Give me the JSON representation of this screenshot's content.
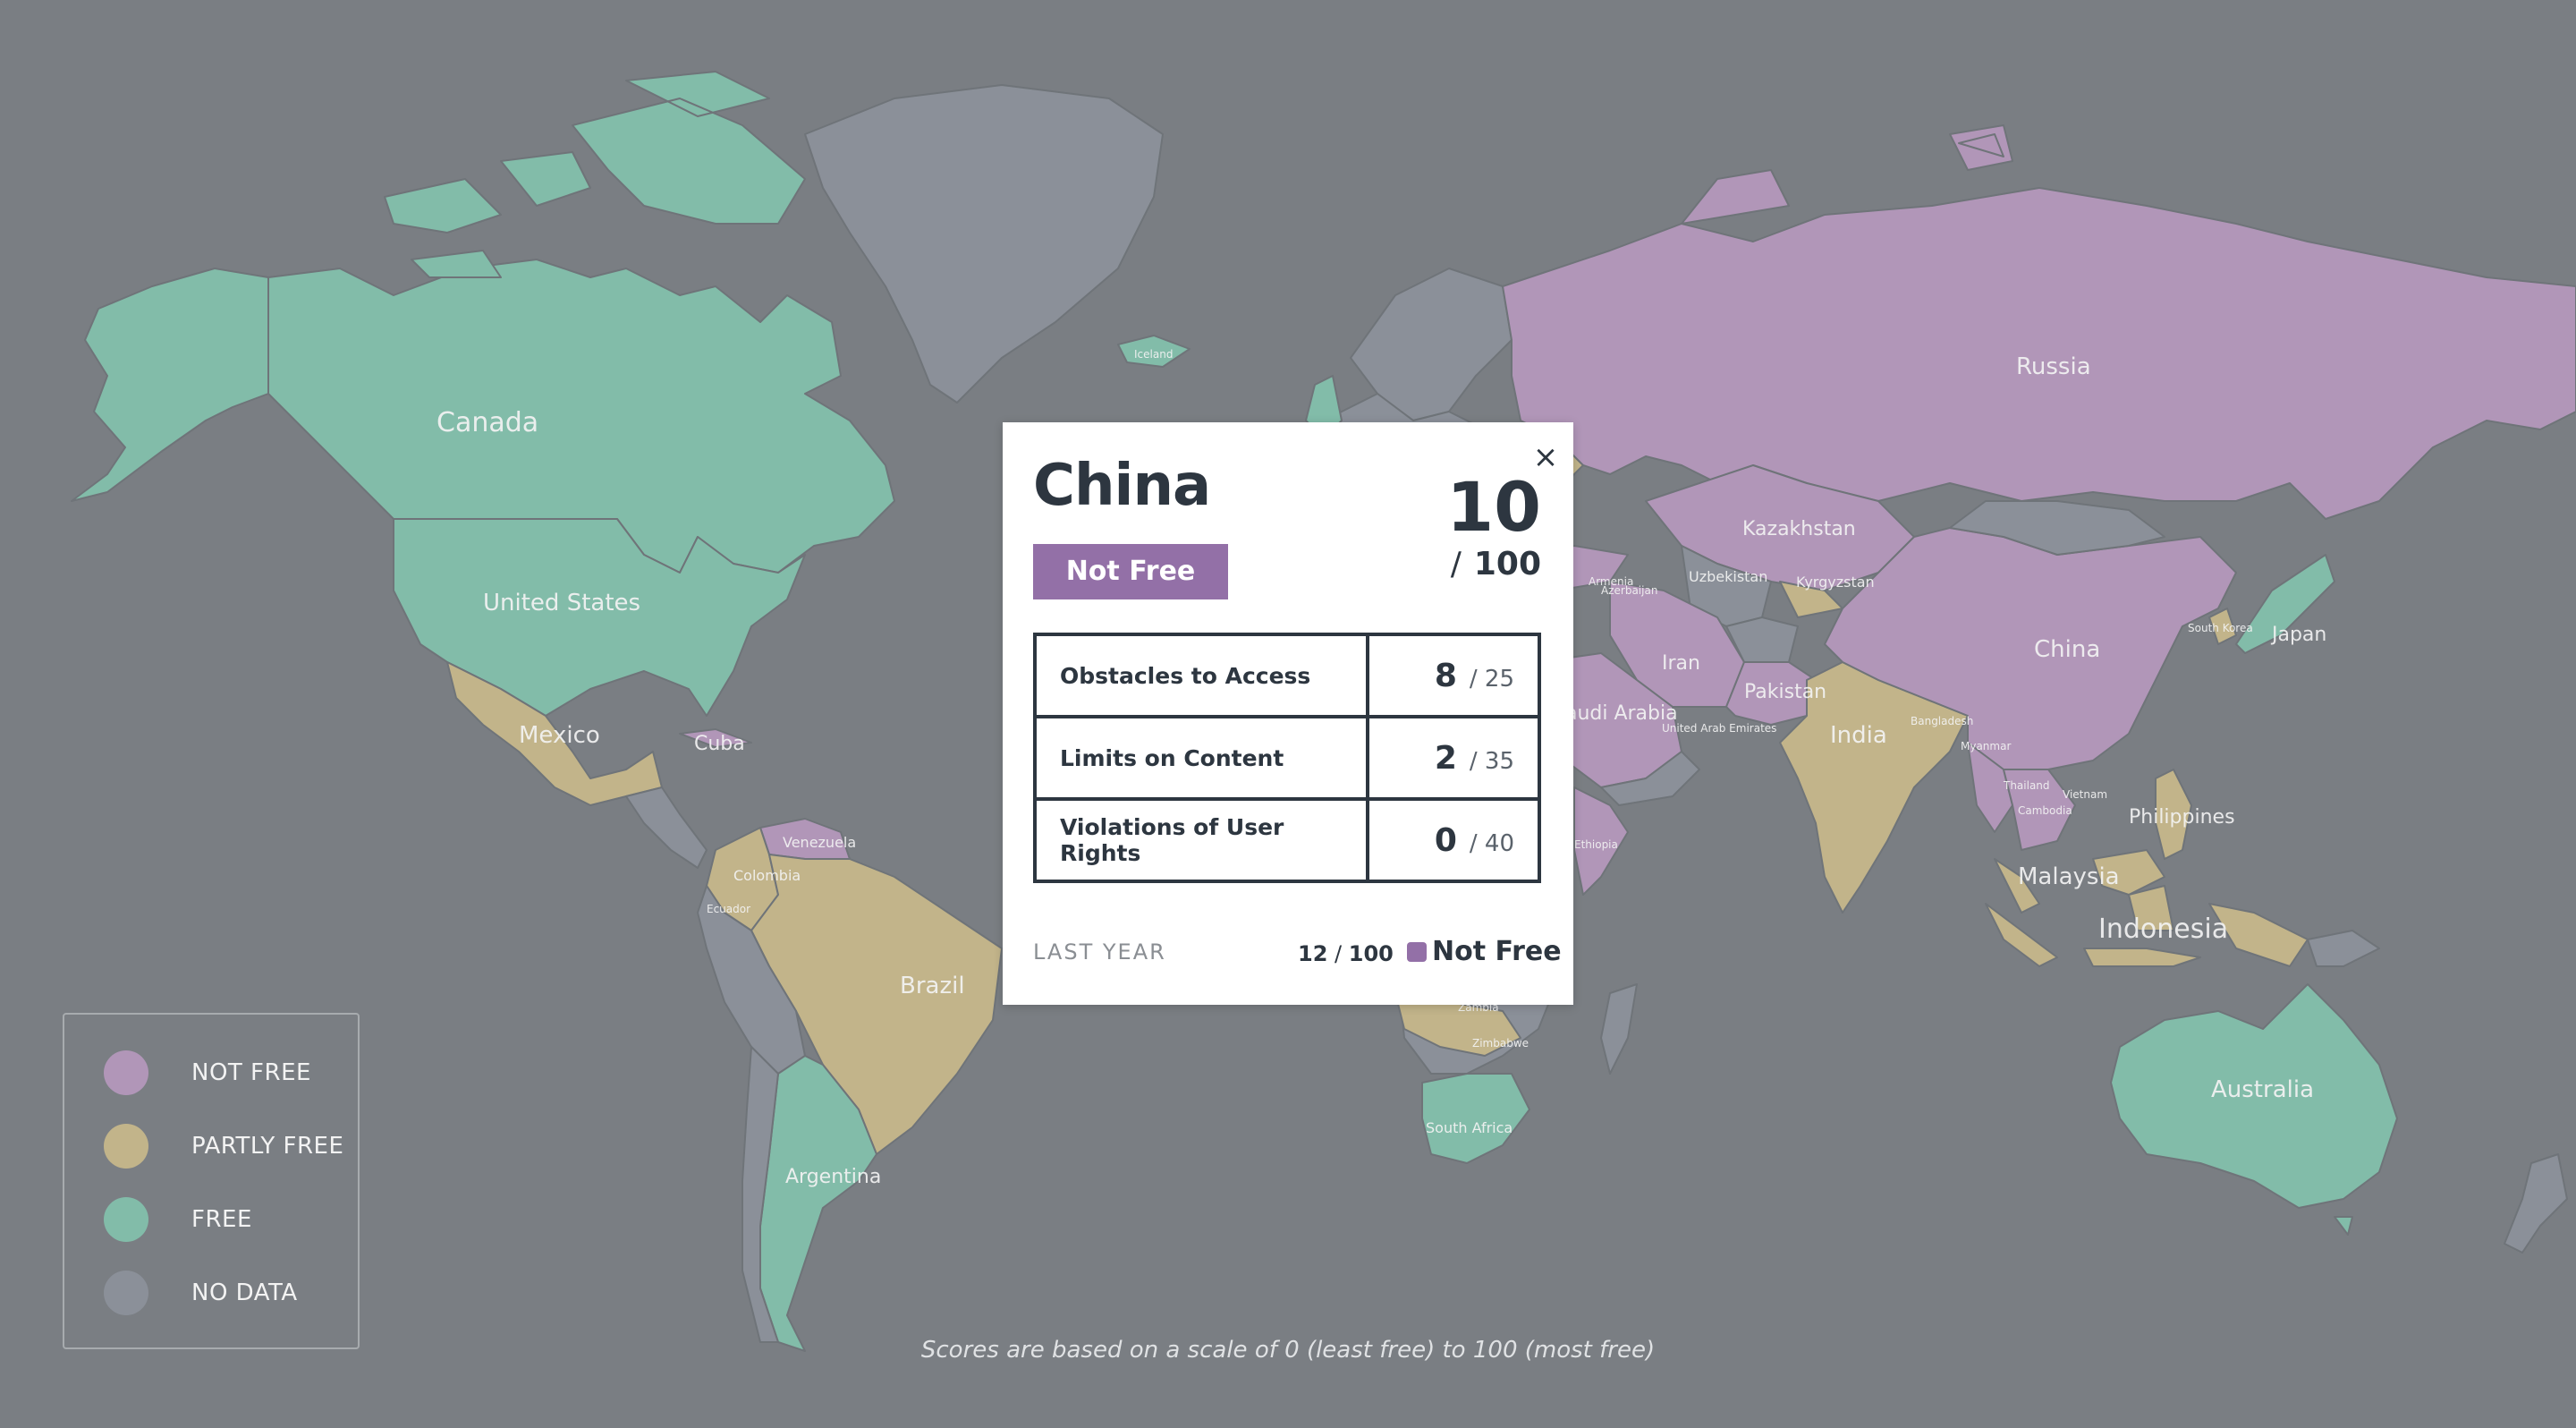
{
  "colors": {
    "background": "#7a7e83",
    "not_free": "#b196b8",
    "partly_free": "#c2b48a",
    "free": "#82bca9",
    "no_data": "#8b9099",
    "badge": "#9370a7",
    "text_dark": "#2d3640"
  },
  "map_labels": {
    "canada": "Canada",
    "united_states": "United States",
    "mexico": "Mexico",
    "cuba": "Cuba",
    "venezuela": "Venezuela",
    "colombia": "Colombia",
    "ecuador": "Ecuador",
    "brazil": "Brazil",
    "argentina": "Argentina",
    "iceland": "Iceland",
    "russia": "Russia",
    "kazakhstan": "Kazakhstan",
    "uzbekistan": "Uzbekistan",
    "kyrgyzstan": "Kyrgyzstan",
    "iran": "Iran",
    "pakistan": "Pakistan",
    "saudi_arabia": "Saudi Arabia",
    "india": "India",
    "china": "China",
    "japan": "Japan",
    "south_korea": "South Korea",
    "myanmar": "Myanmar",
    "thailand": "Thailand",
    "vietnam": "Vietnam",
    "cambodia": "Cambodia",
    "philippines": "Philippines",
    "malaysia": "Malaysia",
    "indonesia": "Indonesia",
    "australia": "Australia",
    "south_africa": "South Africa",
    "zimbabwe": "Zimbabwe",
    "zambia": "Zambia",
    "ethiopia": "Ethiopia",
    "uae": "United Arab Emirates",
    "bangladesh": "Bangladesh",
    "azerbaijan": "Azerbaijan",
    "armenia": "Armenia"
  },
  "popup": {
    "country": "China",
    "status": "Not Free",
    "score": "10",
    "score_max": "100",
    "categories": [
      {
        "label": "Obstacles to Access",
        "score": "8",
        "max": "25"
      },
      {
        "label": "Limits on Content",
        "score": "2",
        "max": "35"
      },
      {
        "label": "Violations of User Rights",
        "score": "0",
        "max": "40"
      }
    ],
    "last_year_label": "LAST YEAR",
    "last_year_score": "12",
    "last_year_max": "100",
    "last_year_status": "Not Free",
    "close_icon": "close-icon"
  },
  "legend": {
    "items": [
      {
        "label": "NOT FREE",
        "color": "#b196b8"
      },
      {
        "label": "PARTLY FREE",
        "color": "#c2b48a"
      },
      {
        "label": "FREE",
        "color": "#82bca9"
      },
      {
        "label": "NO DATA",
        "color": "#8b9099"
      }
    ]
  },
  "footnote": "Scores are based on a scale of 0 (least free) to 100 (most free)"
}
